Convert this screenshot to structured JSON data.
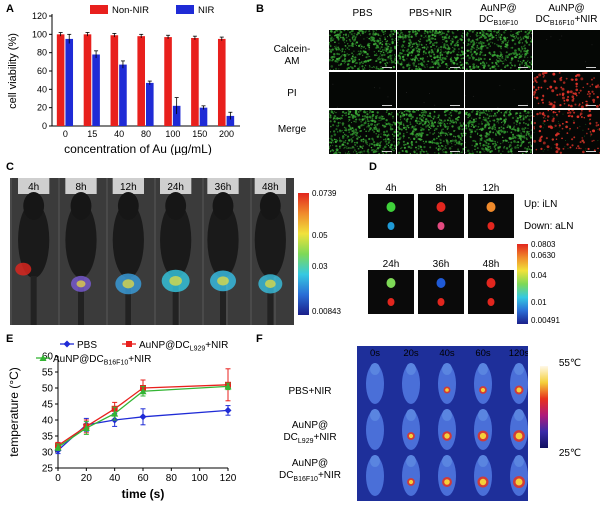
{
  "panels": {
    "A": "A",
    "B": "B",
    "C": "C",
    "D": "D",
    "E": "E",
    "F": "F"
  },
  "panelA": {
    "chart_data": {
      "type": "bar",
      "ylabel": "cell viability (%)",
      "xlabel": "concentration of Au (µg/mL)",
      "categories": [
        "0",
        "15",
        "40",
        "80",
        "100",
        "150",
        "200"
      ],
      "ylim": [
        0,
        120
      ],
      "yticks": [
        "0",
        "20",
        "40",
        "60",
        "80",
        "100",
        "120"
      ],
      "series": [
        {
          "name": "Non-NIR",
          "color": "#e8201d",
          "values": [
            100,
            100,
            99,
            98,
            97,
            96,
            95
          ],
          "err": [
            2,
            2,
            2,
            2,
            2,
            2,
            2
          ]
        },
        {
          "name": "NIR",
          "color": "#1f2bd6",
          "values": [
            95,
            78,
            67,
            47,
            22,
            20,
            11
          ],
          "err": [
            5,
            4,
            4,
            2,
            9,
            2,
            4
          ]
        }
      ]
    }
  },
  "panelB": {
    "columns": [
      "PBS",
      "PBS+NIR",
      "AuNP@",
      "AuNP@"
    ],
    "columns_line2": [
      "",
      "",
      "DC",
      "DC"
    ],
    "columns_sub": [
      "",
      "",
      "B16F10",
      "B16F10"
    ],
    "columns_suffix": [
      "",
      "",
      "",
      "+NIR"
    ],
    "rows_line1": [
      "Calcein-",
      "PI",
      "Merge"
    ],
    "rows_line2": [
      "AM",
      "",
      ""
    ]
  },
  "panelC": {
    "times": [
      "4h",
      "8h",
      "12h",
      "24h",
      "36h",
      "48h"
    ],
    "colorbar": [
      "0.0739",
      "0.05",
      "0.03",
      "0.00843"
    ]
  },
  "panelD": {
    "times_top": [
      "4h",
      "8h",
      "12h"
    ],
    "times_bottom": [
      "24h",
      "36h",
      "48h"
    ],
    "legend_up": "Up: iLN",
    "legend_down": "Down: aLN",
    "colorbar": [
      "0.0803",
      "0.0630",
      "0.04",
      "0.01",
      "0.00491"
    ]
  },
  "panelE": {
    "chart_data": {
      "type": "line",
      "xlabel": "time (s)",
      "ylabel": "temperature (°C)",
      "x": [
        0,
        20,
        40,
        60,
        120
      ],
      "xlim": [
        0,
        120
      ],
      "ylim": [
        25,
        60
      ],
      "xticks": [
        "0",
        "20",
        "40",
        "60",
        "80",
        "100",
        "120"
      ],
      "yticks": [
        "25",
        "30",
        "35",
        "40",
        "45",
        "50",
        "55",
        "60"
      ],
      "series": [
        {
          "name": "PBS",
          "color": "#1f2bd6",
          "marker": "diamond",
          "values": [
            30.5,
            38.5,
            40,
            41,
            43
          ],
          "err": [
            1,
            2,
            2,
            2.5,
            1.5
          ]
        },
        {
          "name": "AuNP@DC",
          "sub": "L929",
          "suffix": "+NIR",
          "color": "#e8201d",
          "marker": "square",
          "values": [
            32,
            38,
            43.5,
            50,
            51
          ],
          "err": [
            1,
            2,
            2,
            2.5,
            5
          ]
        },
        {
          "name": "AuNP@DC",
          "sub": "B16F10",
          "suffix": "+NIR",
          "color": "#34b534",
          "marker": "triangle",
          "values": [
            31.5,
            37.5,
            42,
            49,
            50.5
          ],
          "err": [
            1,
            2,
            2,
            1.5,
            1
          ]
        }
      ]
    }
  },
  "panelF": {
    "times": [
      "0s",
      "20s",
      "40s",
      "60s",
      "120s"
    ],
    "rows_line1": [
      "PBS+NIR",
      "AuNP@",
      "AuNP@"
    ],
    "rows_line2": [
      "",
      "DC",
      "DC"
    ],
    "rows_sub": [
      "",
      "L929",
      "B16F10"
    ],
    "rows_suffix": [
      "",
      "+NIR",
      "+NIR"
    ],
    "colorbar_top": "55℃",
    "colorbar_bottom": "25℃"
  }
}
